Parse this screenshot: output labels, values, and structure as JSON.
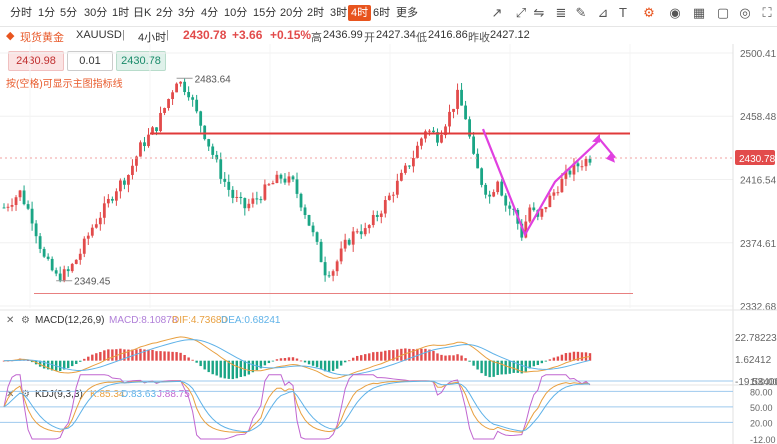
{
  "toolbar": {
    "timeframes": [
      "分时",
      "1分",
      "5分",
      "30分",
      "1时",
      "日K",
      "2分",
      "3分",
      "4分",
      "10分",
      "15分",
      "20分",
      "2时",
      "3时",
      "4时",
      "6时",
      "更多"
    ],
    "active_timeframe": "4时",
    "tools": [
      "trendline-icon",
      "ray-icon",
      "horizontal-line-icon",
      "fib-icon",
      "brush-icon",
      "ruler-icon",
      "text-icon",
      "settings-icon",
      "eye-icon",
      "template-icon",
      "layout-icon",
      "camera-icon",
      "fullscreen-icon"
    ]
  },
  "info": {
    "name": "现货黄金",
    "symbol": "XAUUSD",
    "period": "4小时",
    "last": "2430.78",
    "change": "+3.66",
    "change_pct": "+0.15%",
    "high_label": "高",
    "high": "2436.99",
    "open_label": "开",
    "open": "2427.34",
    "low_label": "低",
    "low": "2416.86",
    "prev_label": "昨收",
    "prev": "2427.12"
  },
  "order": {
    "sell_price": "2430.98",
    "qty": "0.01",
    "buy_price": "2430.78"
  },
  "hint": "按(空格)可显示主图指标线",
  "colors": {
    "up": "#e24b4b",
    "down": "#1aa585",
    "accent": "#e8541e",
    "resistance": "#e03a3a",
    "arrow": "#e040e0",
    "macd_line": "#e8a040",
    "dea_line": "#5fb2e8",
    "k_line": "#e8a040",
    "d_line": "#5fb2e8",
    "j_line": "#c066d0"
  },
  "chart_data": {
    "type": "candlestick",
    "title": "现货黄金 XAUUSD 4小时",
    "y_ticks": [
      2500.41,
      2458.48,
      2416.54,
      2374.61,
      2332.68
    ],
    "ylim": [
      2332.68,
      2500.41
    ],
    "current_price": 2430.78,
    "price_labels": {
      "high_marker": "2483.64",
      "low_marker": "2349.45"
    },
    "resistance_level": 2447,
    "support_level": 2341,
    "anchor_points": [
      [
        0,
        2398
      ],
      [
        4,
        2408
      ],
      [
        7,
        2391
      ],
      [
        10,
        2364
      ],
      [
        13,
        2352
      ],
      [
        16,
        2355
      ],
      [
        19,
        2368
      ],
      [
        22,
        2385
      ],
      [
        25,
        2397
      ],
      [
        28,
        2411
      ],
      [
        31,
        2420
      ],
      [
        34,
        2438
      ],
      [
        38,
        2452
      ],
      [
        41,
        2470
      ],
      [
        43,
        2483
      ],
      [
        46,
        2475
      ],
      [
        48,
        2460
      ],
      [
        51,
        2440
      ],
      [
        54,
        2420
      ],
      [
        57,
        2405
      ],
      [
        60,
        2398
      ],
      [
        63,
        2404
      ],
      [
        66,
        2412
      ],
      [
        69,
        2418
      ],
      [
        72,
        2414
      ],
      [
        75,
        2395
      ],
      [
        78,
        2372
      ],
      [
        80,
        2356
      ],
      [
        82,
        2357
      ],
      [
        85,
        2373
      ],
      [
        88,
        2384
      ],
      [
        90,
        2382
      ],
      [
        93,
        2393
      ],
      [
        96,
        2405
      ],
      [
        99,
        2418
      ],
      [
        102,
        2432
      ],
      [
        105,
        2450
      ],
      [
        108,
        2445
      ],
      [
        111,
        2460
      ],
      [
        113,
        2472
      ],
      [
        115,
        2458
      ],
      [
        117,
        2430
      ],
      [
        119,
        2415
      ],
      [
        121,
        2405
      ],
      [
        123,
        2418
      ],
      [
        125,
        2400
      ],
      [
        127,
        2395
      ],
      [
        129,
        2380
      ],
      [
        131,
        2398
      ],
      [
        133,
        2390
      ],
      [
        135,
        2400
      ],
      [
        138,
        2412
      ],
      [
        141,
        2422
      ],
      [
        144,
        2428
      ],
      [
        146,
        2431
      ]
    ],
    "annotation": {
      "type": "projection-arrow",
      "points_price": [
        [
          2450,
          2442
        ],
        [
          2380,
          2377
        ],
        [
          2415,
          2417
        ],
        [
          2443,
          2448
        ],
        [
          2431,
          2429
        ]
      ]
    },
    "macd": {
      "label": "MACD(12,26,9)",
      "macd_text": "MACD:8.10878",
      "dif_text": "DIF:4.73680",
      "dea_text": "DEA:0.68241",
      "y_ticks": [
        22.78223,
        1.62412,
        -19.534
      ],
      "y_tick_labels": [
        "22.78223",
        "1.62412",
        "-19.53400"
      ]
    },
    "kdj": {
      "label": "KDJ(9,3,3)",
      "k_text": "K:85.34",
      "d_text": "D:83.63",
      "j_text": "J:88.75",
      "y_tick_labels": [
        "100.00",
        "80.00",
        "50.00",
        "20.00",
        "-12.00"
      ],
      "levels": [
        100,
        80,
        50,
        20
      ]
    }
  }
}
